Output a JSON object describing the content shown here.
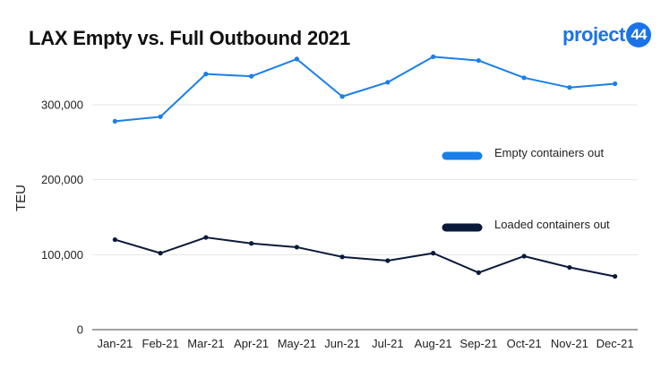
{
  "header": {
    "title": "LAX Empty vs. Full Outbound 2021",
    "logo_text": "project",
    "logo_badge": "44",
    "brand_color": "#1a73e8"
  },
  "chart_data": {
    "type": "line",
    "title": "LAX Empty vs. Full Outbound 2021",
    "xlabel": "",
    "ylabel": "TEU",
    "ylim": [
      0,
      380000
    ],
    "yticks": [
      0,
      100000,
      200000,
      300000
    ],
    "ytick_labels": [
      "0",
      "100,000",
      "200,000",
      "300,000"
    ],
    "grid": true,
    "legend_position": "right",
    "categories": [
      "Jan-21",
      "Feb-21",
      "Mar-21",
      "Apr-21",
      "May-21",
      "Jun-21",
      "Jul-21",
      "Aug-21",
      "Sep-21",
      "Oct-21",
      "Nov-21",
      "Dec-21"
    ],
    "series": [
      {
        "name": "Empty containers out",
        "color": "#1a7fe8",
        "values": [
          278000,
          284000,
          341000,
          338000,
          361000,
          311000,
          330000,
          364000,
          359000,
          336000,
          323000,
          328000
        ]
      },
      {
        "name": "Loaded containers out",
        "color": "#0a1a3a",
        "values": [
          120000,
          102000,
          123000,
          115000,
          110000,
          97000,
          92000,
          102000,
          76000,
          98000,
          83000,
          71000
        ]
      }
    ]
  }
}
